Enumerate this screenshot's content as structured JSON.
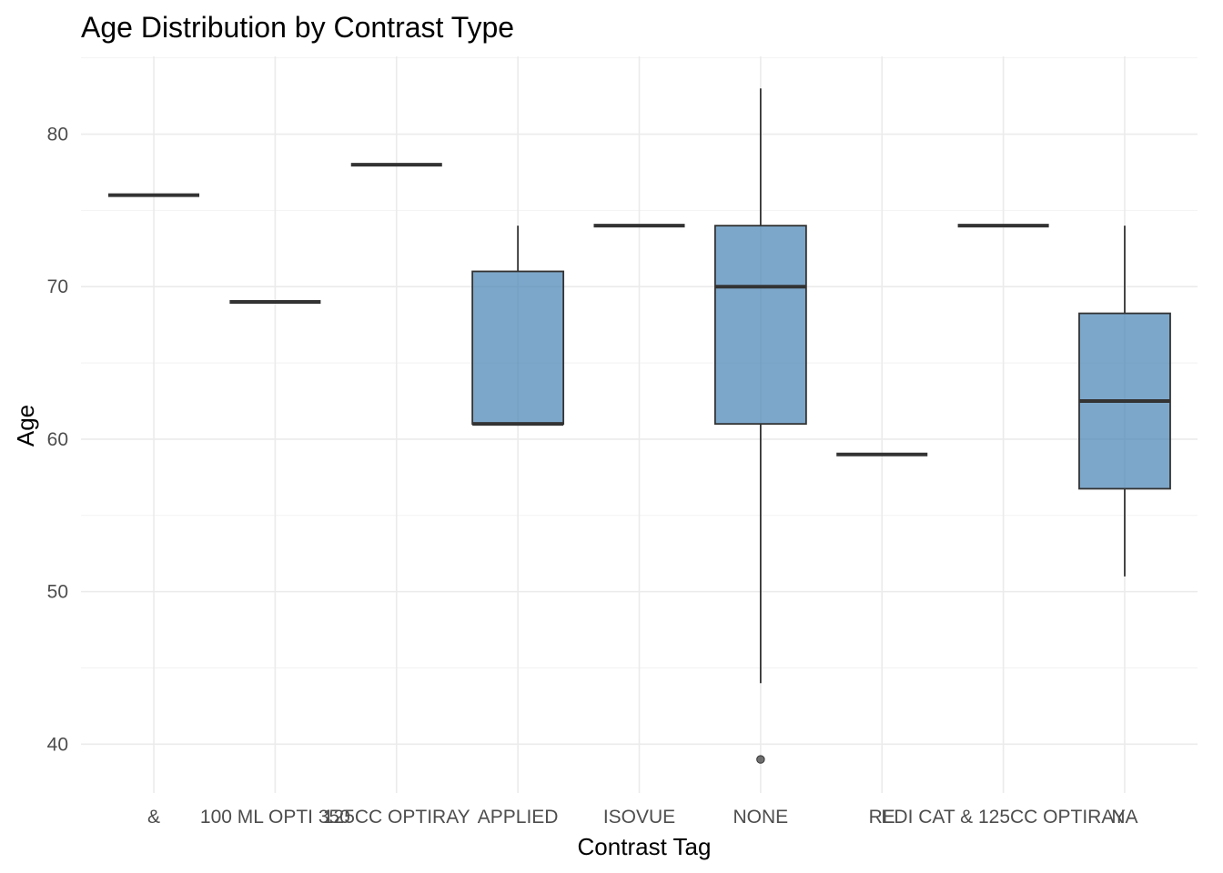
{
  "chart_data": {
    "type": "boxplot",
    "title": "Age Distribution by Contrast Type",
    "xlabel": "Contrast Tag",
    "ylabel": "Age",
    "ylim": [
      36.8,
      85.1
    ],
    "yticks": [
      40,
      50,
      60,
      70,
      80
    ],
    "grid": true,
    "fill_color": "#4682b4",
    "line_color": "#333333",
    "categories": [
      "&",
      "100 ML OPTI 350",
      "125CC OPTIRAY",
      "APPLIED",
      "ISOVUE",
      "NONE",
      "RE",
      "EDI CAT & 125CC OPTIRAY",
      "NA"
    ],
    "boxes": [
      {
        "q1": 76,
        "median": 76,
        "q3": 76,
        "whisker_low": 76,
        "whisker_high": 76,
        "outliers": []
      },
      {
        "q1": 69,
        "median": 69,
        "q3": 69,
        "whisker_low": 69,
        "whisker_high": 69,
        "outliers": []
      },
      {
        "q1": 78,
        "median": 78,
        "q3": 78,
        "whisker_low": 78,
        "whisker_high": 78,
        "outliers": []
      },
      {
        "q1": 61,
        "median": 61,
        "q3": 71,
        "whisker_low": 61,
        "whisker_high": 74,
        "outliers": []
      },
      {
        "q1": 74,
        "median": 74,
        "q3": 74,
        "whisker_low": 74,
        "whisker_high": 74,
        "outliers": []
      },
      {
        "q1": 61,
        "median": 70,
        "q3": 74,
        "whisker_low": 44,
        "whisker_high": 83,
        "outliers": [
          39
        ]
      },
      {
        "q1": 59,
        "median": 59,
        "q3": 59,
        "whisker_low": 59,
        "whisker_high": 59,
        "outliers": []
      },
      {
        "q1": 74,
        "median": 74,
        "q3": 74,
        "whisker_low": 74,
        "whisker_high": 74,
        "outliers": []
      },
      {
        "q1": 56.75,
        "median": 62.5,
        "q3": 68.25,
        "whisker_low": 51,
        "whisker_high": 74,
        "outliers": []
      }
    ]
  }
}
